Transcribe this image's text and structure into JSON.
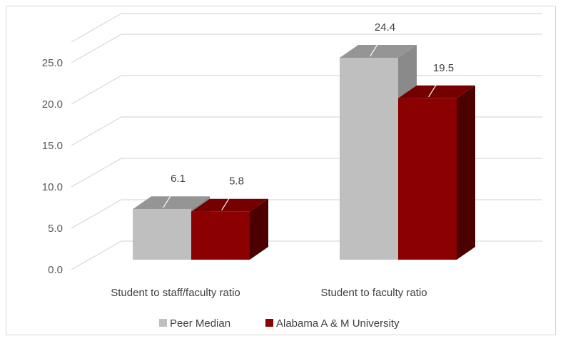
{
  "chart_data": {
    "type": "bar",
    "categories": [
      "Student to staff/faculty ratio",
      "Student to faculty ratio"
    ],
    "series": [
      {
        "name": "Peer Median",
        "values": [
          6.1,
          24.4
        ],
        "color": "#bfbfbf"
      },
      {
        "name": "Alabama A & M University",
        "values": [
          5.8,
          19.5
        ],
        "color": "#8b0000"
      }
    ],
    "data_labels": [
      [
        "6.1",
        "24.4"
      ],
      [
        "5.8",
        "19.5"
      ]
    ],
    "y_ticks": [
      "0.0",
      "5.0",
      "10.0",
      "15.0",
      "20.0",
      "25.0"
    ],
    "ylim": [
      0,
      27.5
    ],
    "grid": true,
    "legend_position": "bottom",
    "style": "3d-clustered-column"
  }
}
